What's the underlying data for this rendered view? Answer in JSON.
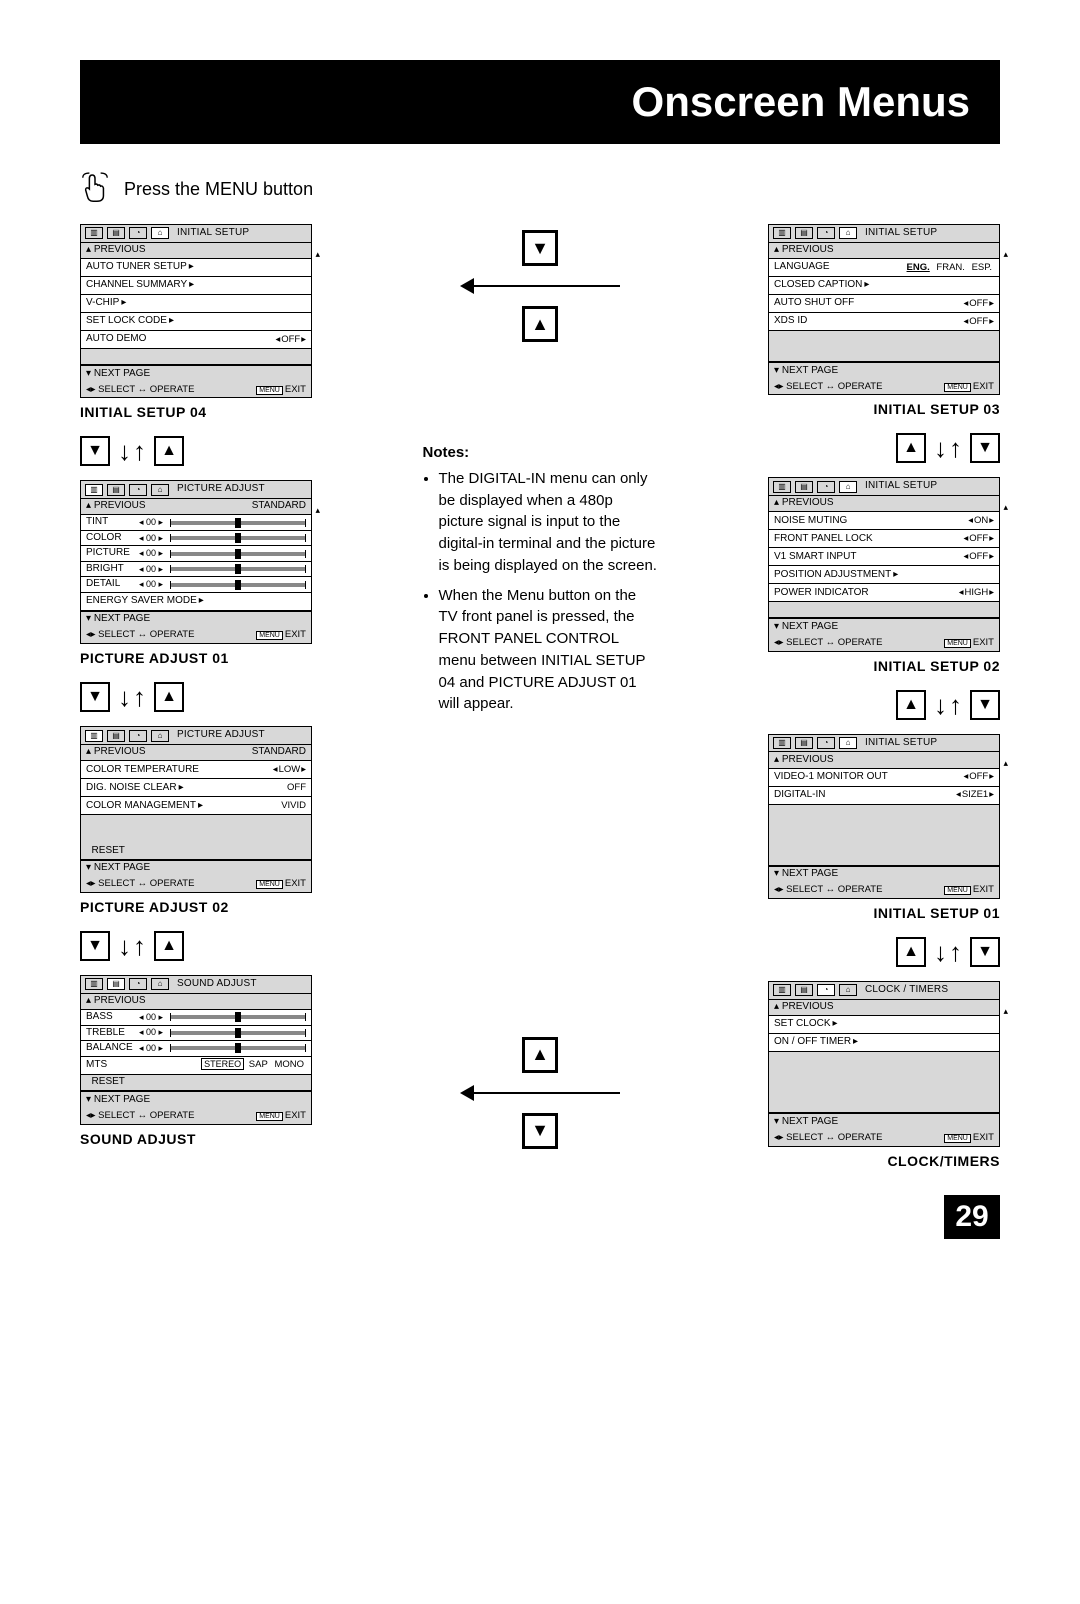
{
  "page_title": "Onscreen Menus",
  "instruction": "Press the MENU button",
  "page_number": "29",
  "notes_heading": "Notes:",
  "notes": [
    "The DIGITAL-IN menu can only be displayed when a 480p picture signal is input to the digital-in terminal and the picture is being displayed on the screen.",
    "When the Menu button on the TV front panel is pressed, the FRONT PANEL CONTROL menu between INITIAL SETUP 04 and PICTURE ADJUST 01 will appear."
  ],
  "footer_select": "SELECT",
  "footer_operate": "OPERATE",
  "footer_exit": "EXIT",
  "footer_menu": "MENU",
  "prev_label": "PREVIOUS",
  "next_label": "NEXT PAGE",
  "card_is04": {
    "header": "INITIAL SETUP",
    "title": "INITIAL SETUP 04",
    "rows": [
      {
        "label": "AUTO TUNER SETUP",
        "type": "sub"
      },
      {
        "label": "CHANNEL SUMMARY",
        "type": "sub"
      },
      {
        "label": "V-CHIP",
        "type": "sub"
      },
      {
        "label": "SET LOCK CODE",
        "type": "sub"
      },
      {
        "label": "AUTO DEMO",
        "type": "val",
        "val": "OFF"
      }
    ]
  },
  "card_is03": {
    "header": "INITIAL SETUP",
    "title": "INITIAL SETUP 03",
    "rows": [
      {
        "label": "LANGUAGE",
        "type": "opts",
        "opts": [
          "ENG.",
          "FRAN.",
          "ESP."
        ],
        "sel": 0
      },
      {
        "label": "CLOSED CAPTION",
        "type": "sub"
      },
      {
        "label": "AUTO SHUT OFF",
        "type": "val",
        "val": "OFF"
      },
      {
        "label": "XDS ID",
        "type": "val",
        "val": "OFF"
      }
    ]
  },
  "card_is02": {
    "header": "INITIAL SETUP",
    "title": "INITIAL SETUP 02",
    "rows": [
      {
        "label": "NOISE MUTING",
        "type": "val",
        "val": "ON"
      },
      {
        "label": "FRONT PANEL LOCK",
        "type": "val",
        "val": "OFF"
      },
      {
        "label": "V1 SMART INPUT",
        "type": "val",
        "val": "OFF"
      },
      {
        "label": "POSITION ADJUSTMENT",
        "type": "sub"
      },
      {
        "label": "POWER INDICATOR",
        "type": "val",
        "val": "HIGH"
      }
    ]
  },
  "card_is01": {
    "header": "INITIAL SETUP",
    "title": "INITIAL SETUP 01",
    "rows": [
      {
        "label": "VIDEO-1 MONITOR OUT",
        "type": "val",
        "val": "OFF"
      },
      {
        "label": "DIGITAL-IN",
        "type": "val",
        "val": "SIZE1"
      }
    ]
  },
  "card_pa01": {
    "header": "PICTURE ADJUST",
    "mode": "STANDARD",
    "title": "PICTURE ADJUST 01",
    "sliders": [
      {
        "label": "TINT",
        "val": "00"
      },
      {
        "label": "COLOR",
        "val": "00"
      },
      {
        "label": "PICTURE",
        "val": "00"
      },
      {
        "label": "BRIGHT",
        "val": "00"
      },
      {
        "label": "DETAIL",
        "val": "00"
      }
    ],
    "extra": [
      {
        "label": "ENERGY SAVER MODE",
        "type": "sub"
      }
    ]
  },
  "card_pa02": {
    "header": "PICTURE ADJUST",
    "mode": "STANDARD",
    "title": "PICTURE ADJUST 02",
    "rows": [
      {
        "label": "COLOR TEMPERATURE",
        "type": "val",
        "val": "LOW"
      },
      {
        "label": "DIG. NOISE CLEAR",
        "type": "rval",
        "val": "OFF"
      },
      {
        "label": "COLOR MANAGEMENT",
        "type": "rval",
        "val": "VIVID"
      }
    ],
    "reset": "RESET"
  },
  "card_sound": {
    "header": "SOUND ADJUST",
    "title": "SOUND ADJUST",
    "sliders": [
      {
        "label": "BASS",
        "val": "00"
      },
      {
        "label": "TREBLE",
        "val": "00"
      },
      {
        "label": "BALANCE",
        "val": "00"
      }
    ],
    "mts_label": "MTS",
    "mts_opts": [
      "STEREO",
      "SAP",
      "MONO"
    ],
    "mts_sel": 0,
    "reset": "RESET"
  },
  "card_clock": {
    "header": "CLOCK / TIMERS",
    "title": "CLOCK/TIMERS",
    "rows": [
      {
        "label": "SET CLOCK",
        "type": "sub"
      },
      {
        "label": "ON / OFF TIMER",
        "type": "sub"
      }
    ]
  }
}
